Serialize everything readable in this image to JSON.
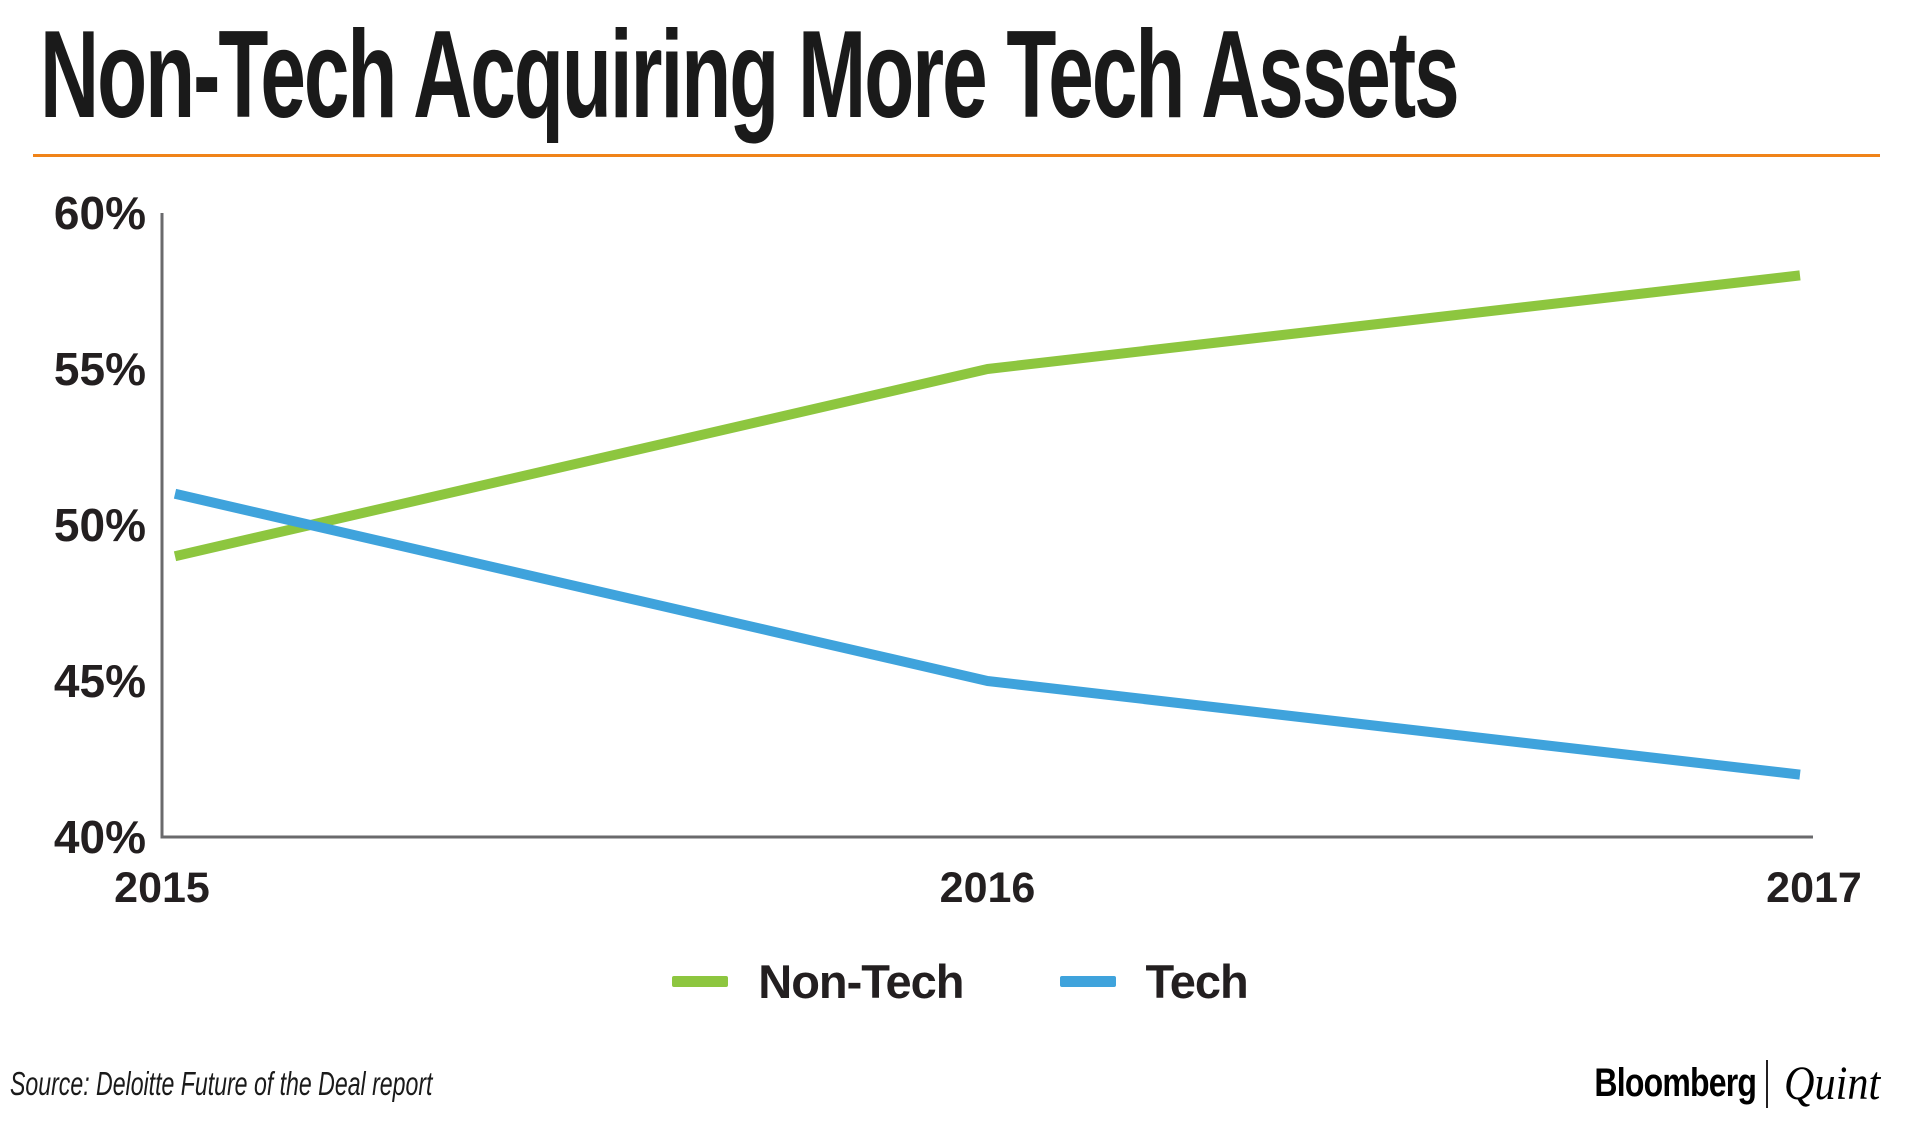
{
  "colors": {
    "title_text": "#1a1a1a",
    "header_rule": "#f08318",
    "axis": "#6a6a6c",
    "tick_text": "#231f20",
    "non_tech_green": "#8dc63f",
    "tech_blue": "#3fa3dc"
  },
  "chart_data": {
    "type": "line",
    "title": "Non-Tech Acquiring More Tech Assets",
    "x": [
      "2015",
      "2016",
      "2017"
    ],
    "series": [
      {
        "name": "Non-Tech",
        "color": "#8dc63f",
        "values": [
          49,
          55,
          58
        ]
      },
      {
        "name": "Tech",
        "color": "#3fa3dc",
        "values": [
          51,
          45,
          42
        ]
      }
    ],
    "xlabel": "",
    "ylabel": "",
    "ylim": [
      40,
      60
    ],
    "yticks": [
      40,
      45,
      50,
      55,
      60
    ],
    "ytick_labels": [
      "40%",
      "45%",
      "50%",
      "55%",
      "60%"
    ],
    "grid": false,
    "legend_position": "bottom"
  },
  "footer": {
    "source": "Source: Deloitte Future of the Deal report",
    "brand": {
      "left": "Bloomberg",
      "divider": "|",
      "right": "Quint"
    }
  }
}
